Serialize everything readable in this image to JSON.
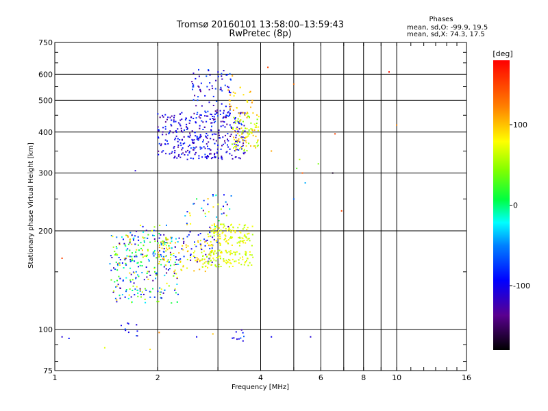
{
  "chart_data": {
    "type": "scatter",
    "title": "Tromsø 20160101 13:58:00–13:59:43",
    "subtitle": "RwPretec (8p)",
    "xlabel": "Frequency [MHz]",
    "ylabel": "Stationary phase Virtual Height [km]",
    "x_scale": "log",
    "y_scale": "log",
    "xlim": [
      1,
      16
    ],
    "ylim": [
      75,
      750
    ],
    "x_ticks": [
      1,
      2,
      4,
      6,
      8,
      10,
      16
    ],
    "x_minor_ticks": [
      3,
      5,
      7,
      9
    ],
    "y_ticks": [
      75,
      100,
      200,
      300,
      400,
      500,
      600,
      750
    ],
    "grid": true,
    "phases": {
      "heading": "Phases",
      "o_line": "mean, sd,O: -99.9, 19.5",
      "x_line": "mean, sd,X:  74.3, 17.5"
    },
    "colorbar": {
      "label": "[deg]",
      "range": [
        -180,
        180
      ],
      "ticks": [
        100,
        0,
        -100
      ]
    },
    "point_groups": [
      {
        "x_range": [
          1.45,
          2.3
        ],
        "y_range": [
          120,
          195
        ],
        "phase_range": [
          -140,
          100
        ],
        "count": 260
      },
      {
        "x_range": [
          1.6,
          2.2
        ],
        "y_range": [
          160,
          210
        ],
        "phase_range": [
          -130,
          110
        ],
        "count": 60
      },
      {
        "x_range": [
          2.0,
          2.9
        ],
        "y_range": [
          150,
          190
        ],
        "phase_range": [
          60,
          110
        ],
        "count": 80
      },
      {
        "x_range": [
          2.3,
          3.0
        ],
        "y_range": [
          160,
          200
        ],
        "phase_range": [
          -130,
          -70
        ],
        "count": 40
      },
      {
        "x_range": [
          2.7,
          3.8
        ],
        "y_range": [
          155,
          175
        ],
        "phase_range": [
          50,
          90
        ],
        "count": 110
      },
      {
        "x_range": [
          2.8,
          3.8
        ],
        "y_range": [
          180,
          210
        ],
        "phase_range": [
          50,
          90
        ],
        "count": 110
      },
      {
        "x_range": [
          2.4,
          3.3
        ],
        "y_range": [
          205,
          260
        ],
        "phase_range": [
          -140,
          110
        ],
        "count": 40
      },
      {
        "x_range": [
          2.0,
          3.6
        ],
        "y_range": [
          330,
          460
        ],
        "phase_range": [
          -140,
          -70
        ],
        "count": 340
      },
      {
        "x_range": [
          2.5,
          3.3
        ],
        "y_range": [
          430,
          620
        ],
        "phase_range": [
          -140,
          -60
        ],
        "count": 90
      },
      {
        "x_range": [
          3.3,
          3.95
        ],
        "y_range": [
          350,
          460
        ],
        "phase_range": [
          40,
          110
        ],
        "count": 100
      },
      {
        "x_range": [
          3.2,
          3.9
        ],
        "y_range": [
          460,
          600
        ],
        "phase_range": [
          80,
          120
        ],
        "count": 25
      },
      {
        "x_range": [
          1.55,
          1.75
        ],
        "y_range": [
          93,
          110
        ],
        "phase_range": [
          -130,
          -60
        ],
        "count": 10
      },
      {
        "x_range": [
          3.3,
          3.6
        ],
        "y_range": [
          92,
          100
        ],
        "phase_range": [
          -130,
          -60
        ],
        "count": 10
      }
    ],
    "isolated_points": [
      {
        "x": 1.05,
        "y": 95,
        "phase": -110
      },
      {
        "x": 1.1,
        "y": 94,
        "phase": -90
      },
      {
        "x": 1.05,
        "y": 165,
        "phase": 150
      },
      {
        "x": 1.4,
        "y": 88,
        "phase": 70
      },
      {
        "x": 1.72,
        "y": 305,
        "phase": -110
      },
      {
        "x": 1.9,
        "y": 87,
        "phase": 90
      },
      {
        "x": 2.02,
        "y": 98,
        "phase": 120
      },
      {
        "x": 2.6,
        "y": 95,
        "phase": -100
      },
      {
        "x": 2.9,
        "y": 97,
        "phase": 100
      },
      {
        "x": 4.2,
        "y": 630,
        "phase": 150
      },
      {
        "x": 4.3,
        "y": 350,
        "phase": 110
      },
      {
        "x": 4.3,
        "y": 95,
        "phase": -100
      },
      {
        "x": 5.0,
        "y": 560,
        "phase": 130
      },
      {
        "x": 5.1,
        "y": 310,
        "phase": 30
      },
      {
        "x": 5.2,
        "y": 330,
        "phase": 60
      },
      {
        "x": 5.3,
        "y": 300,
        "phase": 140
      },
      {
        "x": 5.4,
        "y": 280,
        "phase": -40
      },
      {
        "x": 5.6,
        "y": 95,
        "phase": -110
      },
      {
        "x": 5.9,
        "y": 320,
        "phase": 40
      },
      {
        "x": 6.5,
        "y": 300,
        "phase": -170
      },
      {
        "x": 6.6,
        "y": 395,
        "phase": 150
      },
      {
        "x": 6.9,
        "y": 230,
        "phase": 150
      },
      {
        "x": 9.5,
        "y": 610,
        "phase": 170
      },
      {
        "x": 10.0,
        "y": 420,
        "phase": 120
      },
      {
        "x": 5.0,
        "y": 250,
        "phase": -60
      }
    ]
  }
}
